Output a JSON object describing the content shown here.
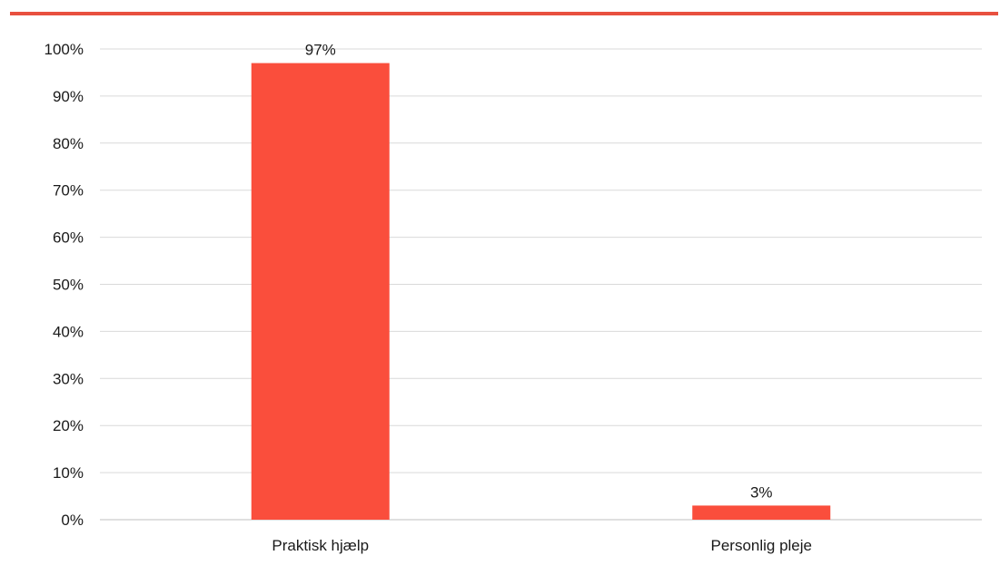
{
  "chart_data": {
    "type": "bar",
    "categories": [
      "Praktisk hjælp",
      "Personlig pleje"
    ],
    "values": [
      97,
      3
    ],
    "data_labels": [
      "97%",
      "3%"
    ],
    "ylim": [
      0,
      100
    ],
    "yticks": [
      "0%",
      "10%",
      "20%",
      "30%",
      "40%",
      "50%",
      "60%",
      "70%",
      "80%",
      "90%",
      "100%"
    ],
    "grid": true,
    "bar_color": "#fa4e3c",
    "accent_color": "#e8503f"
  }
}
